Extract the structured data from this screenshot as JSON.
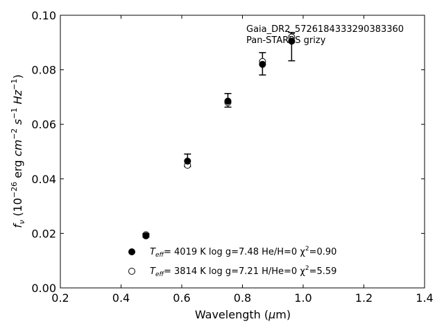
{
  "chart_data": {
    "type": "scatter",
    "title": "",
    "xlabel": "Wavelength (μm)",
    "ylabel": "f_ν (10^-26 erg cm^-2 s^-1 Hz^-1)",
    "xlim": [
      0.2,
      1.4
    ],
    "ylim": [
      0.0,
      0.1
    ],
    "x_ticks": [
      "0.2",
      "0.4",
      "0.6",
      "0.8",
      "1.0",
      "1.2",
      "1.4"
    ],
    "y_ticks": [
      "0.00",
      "0.02",
      "0.04",
      "0.06",
      "0.08",
      "0.10"
    ],
    "grid": false,
    "annotation": {
      "line1": "Gaia_DR2_5726184333290383360",
      "line2": "Pan-STARRS grizy"
    },
    "observed": {
      "x": [
        0.482,
        0.619,
        0.752,
        0.866,
        0.962
      ],
      "y": [
        0.0193,
        0.0468,
        0.0688,
        0.0822,
        0.0885
      ],
      "yerr": [
        0.0006,
        0.0023,
        0.0025,
        0.0041,
        0.0052
      ]
    },
    "series": [
      {
        "name": "log g=7.48  He/H=0  χ²=0.90",
        "marker": "filled-circle",
        "teff_label": "T",
        "teff_sub": "eff",
        "teff_value": "=  4019 K",
        "detail": "log g=7.48  He/H=0  χ",
        "chi_sup": "2",
        "chi_value": "=0.90",
        "x": [
          0.482,
          0.619,
          0.752,
          0.866,
          0.962
        ],
        "y": [
          0.0191,
          0.0465,
          0.0685,
          0.082,
          0.0905
        ]
      },
      {
        "name": "log g=7.21  H/He=0  χ²=5.59",
        "marker": "open-circle",
        "teff_label": "T",
        "teff_sub": "eff",
        "teff_value": "=  3814 K",
        "detail": "log g=7.21  H/He=0  χ",
        "chi_sup": "2",
        "chi_value": "=5.59",
        "x": [
          0.482,
          0.619,
          0.752,
          0.866,
          0.962
        ],
        "y": [
          0.0195,
          0.045,
          0.068,
          0.083,
          0.092
        ]
      }
    ],
    "colors": {
      "marker": "#000000",
      "axis": "#000000",
      "background": "#ffffff"
    }
  }
}
